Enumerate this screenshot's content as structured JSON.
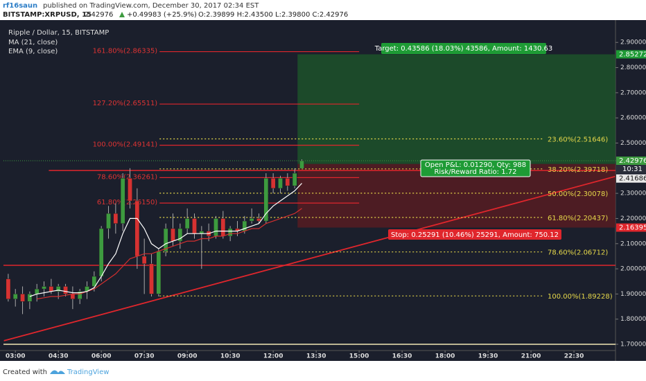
{
  "header": {
    "author": "rf16saun",
    "published": "published on TradingView.com, December 30, 2017 02:34 EST",
    "symbol": "BITSTAMP:XRPUSD, 15",
    "price": "2.42976",
    "change": "+0.49983 (+25.9%)",
    "ohlc": "O:2.39899 H:2.43500 L:2.39800 C:2.42976"
  },
  "chart_data": {
    "type": "candlestick",
    "title": "Ripple / Dollar, 15, BITSTAMP",
    "x": [
      165,
      180,
      195,
      210,
      225,
      240,
      255,
      270,
      285,
      300,
      315,
      330,
      345,
      360,
      375,
      390,
      405,
      420,
      435,
      450,
      465,
      480,
      495,
      510,
      525,
      540,
      555,
      570,
      585,
      600,
      615,
      630,
      645,
      660,
      675,
      690,
      705,
      720,
      735,
      750,
      765,
      780
    ],
    "open": [
      1.96,
      1.88,
      1.9,
      1.87,
      1.9,
      1.92,
      1.93,
      1.91,
      1.93,
      1.9,
      1.88,
      1.91,
      1.93,
      1.97,
      2.16,
      2.22,
      2.18,
      2.36,
      2.27,
      2.05,
      2.02,
      1.9,
      2.07,
      2.16,
      2.11,
      2.16,
      2.2,
      2.14,
      2.15,
      2.13,
      2.2,
      2.13,
      2.16,
      2.15,
      2.19,
      2.2,
      2.19,
      2.36,
      2.32,
      2.36,
      2.33,
      2.39899
    ],
    "high": [
      1.98,
      1.92,
      1.93,
      1.91,
      1.94,
      1.95,
      1.96,
      1.94,
      1.94,
      1.93,
      1.92,
      1.95,
      1.99,
      2.17,
      2.25,
      2.26,
      2.38,
      2.4,
      2.32,
      2.12,
      2.06,
      2.08,
      2.18,
      2.22,
      2.18,
      2.24,
      2.22,
      2.17,
      2.18,
      2.21,
      2.23,
      2.17,
      2.19,
      2.21,
      2.24,
      2.22,
      2.38,
      2.38,
      2.37,
      2.38,
      2.4,
      2.435
    ],
    "low": [
      1.87,
      1.85,
      1.82,
      1.84,
      1.87,
      1.89,
      1.9,
      1.88,
      1.89,
      1.84,
      1.86,
      1.88,
      1.91,
      1.95,
      2.12,
      2.14,
      2.15,
      2.24,
      2.0,
      1.9,
      1.89,
      1.89,
      2.05,
      2.09,
      2.08,
      2.14,
      2.12,
      2.0,
      2.11,
      2.12,
      2.12,
      2.11,
      2.13,
      2.14,
      2.18,
      2.18,
      2.18,
      2.3,
      2.3,
      2.31,
      2.32,
      2.398
    ],
    "close": [
      1.88,
      1.9,
      1.87,
      1.9,
      1.92,
      1.93,
      1.91,
      1.93,
      1.9,
      1.88,
      1.91,
      1.93,
      1.97,
      2.16,
      2.22,
      2.18,
      2.36,
      2.27,
      2.05,
      2.02,
      1.9,
      2.07,
      2.16,
      2.11,
      2.16,
      2.2,
      2.14,
      2.15,
      2.13,
      2.2,
      2.13,
      2.16,
      2.15,
      2.19,
      2.2,
      2.19,
      2.36,
      2.32,
      2.36,
      2.33,
      2.38,
      2.42976
    ],
    "up_color": "#3d9b3f",
    "down_color": "#d63232",
    "series": [
      {
        "name": "MA (21, close)",
        "color": "#d32f2f",
        "values": [
          null,
          null,
          null,
          null,
          1.88,
          1.885,
          1.89,
          1.89,
          1.895,
          1.9,
          1.9,
          1.91,
          1.92,
          1.94,
          1.96,
          1.98,
          2.01,
          2.04,
          2.05,
          2.06,
          2.06,
          2.07,
          2.08,
          2.09,
          2.1,
          2.11,
          2.11,
          2.12,
          2.12,
          2.13,
          2.13,
          2.14,
          2.14,
          2.15,
          2.16,
          2.16,
          2.18,
          2.19,
          2.2,
          2.21,
          2.22,
          2.24
        ]
      },
      {
        "name": "EMA (9, close)",
        "color": "#ffffff",
        "values": [
          null,
          null,
          null,
          1.89,
          1.9,
          1.905,
          1.91,
          1.915,
          1.91,
          1.905,
          1.905,
          1.91,
          1.925,
          1.97,
          2.02,
          2.06,
          2.14,
          2.2,
          2.2,
          2.16,
          2.1,
          2.08,
          2.1,
          2.11,
          2.12,
          2.14,
          2.14,
          2.14,
          2.14,
          2.15,
          2.15,
          2.15,
          2.15,
          2.16,
          2.17,
          2.18,
          2.22,
          2.25,
          2.27,
          2.29,
          2.31,
          2.34
        ]
      }
    ],
    "xlim": [
      155,
      1437
    ],
    "xticks": [
      {
        "value": 180,
        "label": "03:00"
      },
      {
        "value": 270,
        "label": "04:30"
      },
      {
        "value": 360,
        "label": "06:00"
      },
      {
        "value": 450,
        "label": "07:30"
      },
      {
        "value": 540,
        "label": "09:00"
      },
      {
        "value": 630,
        "label": "10:30"
      },
      {
        "value": 720,
        "label": "12:00"
      },
      {
        "value": 810,
        "label": "13:30"
      },
      {
        "value": 900,
        "label": "15:00"
      },
      {
        "value": 990,
        "label": "16:30"
      },
      {
        "value": 1080,
        "label": "18:00"
      },
      {
        "value": 1170,
        "label": "19:30"
      },
      {
        "value": 1260,
        "label": "21:00"
      },
      {
        "value": 1350,
        "label": "22:30"
      }
    ],
    "ylim": [
      1.678,
      2.986
    ],
    "yticks": [
      {
        "value": 1.7,
        "label": "1.70000"
      },
      {
        "value": 1.8,
        "label": "1.80000"
      },
      {
        "value": 1.9,
        "label": "1.90000"
      },
      {
        "value": 2.0,
        "label": "2.00000"
      },
      {
        "value": 2.1,
        "label": "2.10000"
      },
      {
        "value": 2.2,
        "label": "2.20000"
      },
      {
        "value": 2.3,
        "label": "2.30000"
      },
      {
        "value": 2.5,
        "label": "2.50000"
      },
      {
        "value": 2.6,
        "label": "2.60000"
      },
      {
        "value": 2.7,
        "label": "2.70000"
      },
      {
        "value": 2.8,
        "label": "2.80000"
      },
      {
        "value": 2.9,
        "label": "2.90000"
      }
    ],
    "fib_left": [
      {
        "value": 2.86335,
        "label": "161.80%(2.86335)"
      },
      {
        "value": 2.65511,
        "label": "127.20%(2.65511)"
      },
      {
        "value": 2.49141,
        "label": "100.00%(2.49141)"
      },
      {
        "value": 2.36261,
        "label": "78.60%(2.36261)"
      },
      {
        "value": 2.2615,
        "label": "61.80%(2.26150)"
      }
    ],
    "fib_right": [
      {
        "value": 2.51646,
        "label": "23.60%(2.51646)"
      },
      {
        "value": 2.39718,
        "label": "38.20%(2.39718)"
      },
      {
        "value": 2.30078,
        "label": "50.00%(2.30078)"
      },
      {
        "value": 2.20437,
        "label": "61.80%(2.20437)"
      },
      {
        "value": 2.06712,
        "label": "78.60%(2.06712)"
      },
      {
        "value": 1.89228,
        "label": "100.00%(1.89228)"
      }
    ],
    "hlines": [
      2.391,
      2.014
    ],
    "base_line": 1.7,
    "trend_line": {
      "x": [
        156,
        1436
      ],
      "y": [
        1.714,
        2.367
      ]
    },
    "position": {
      "entry": 2.41686,
      "target": 2.85272,
      "stop": 2.16395,
      "target_label": "Target: 0.43586 (18.03%) 43586, Amount: 1430.63",
      "stop_label": "Stop: 0.25291 (10.46%) 25291, Amount: 750.12",
      "pnl_label": "Open P&L: 0.01290, Qty: 988",
      "rr_label": "Risk/Reward Ratio: 1.72"
    },
    "countdown": "10:31"
  },
  "footer": {
    "created": "Created with",
    "brand": "TradingView"
  }
}
